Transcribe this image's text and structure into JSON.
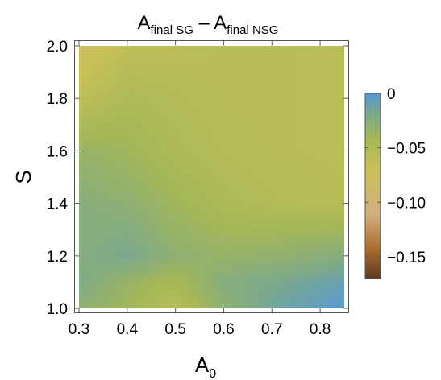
{
  "chart_data": {
    "type": "heatmap",
    "title": "A",
    "title_sub_left": "final SG",
    "title_sep": " – ",
    "title_right": "A",
    "title_sub_right": "final NSG",
    "xlabel": "A",
    "xlabel_sub": "0",
    "ylabel": "S",
    "xlim": [
      0.3,
      0.85
    ],
    "ylim": [
      1.0,
      2.0
    ],
    "x_ticks": [
      "0.3",
      "0.4",
      "0.5",
      "0.6",
      "0.7",
      "0.8"
    ],
    "y_ticks": [
      "1.0",
      "1.2",
      "1.4",
      "1.6",
      "1.8",
      "2.0"
    ],
    "colorbar": {
      "range": [
        -0.17,
        0
      ],
      "ticks": [
        "0",
        "-0.05",
        "-0.10",
        "-0.15"
      ],
      "tick_values": [
        0,
        -0.05,
        -0.1,
        -0.15
      ],
      "colors": [
        "#5b3a25",
        "#a8692c",
        "#d3b07e",
        "#c9c157",
        "#a6b857",
        "#7eaa88",
        "#5599d8"
      ],
      "color_stops": [
        0,
        0.15,
        0.35,
        0.6,
        0.75,
        0.88,
        1
      ]
    },
    "approximate_grid": {
      "x": [
        0.3,
        0.4,
        0.5,
        0.6,
        0.7,
        0.85
      ],
      "y": [
        1.0,
        1.1,
        1.2,
        1.4,
        1.6,
        1.8,
        2.0
      ],
      "z": [
        [
          -0.03,
          -0.04,
          -0.055,
          -0.03,
          -0.015,
          -0.002
        ],
        [
          -0.02,
          -0.035,
          -0.045,
          -0.025,
          -0.02,
          -0.01
        ],
        [
          -0.025,
          -0.018,
          -0.03,
          -0.035,
          -0.032,
          -0.025
        ],
        [
          -0.025,
          -0.03,
          -0.04,
          -0.048,
          -0.052,
          -0.055
        ],
        [
          -0.035,
          -0.04,
          -0.048,
          -0.053,
          -0.055,
          -0.056
        ],
        [
          -0.06,
          -0.048,
          -0.052,
          -0.055,
          -0.055,
          -0.056
        ],
        [
          -0.08,
          -0.06,
          -0.058,
          -0.055,
          -0.055,
          -0.056
        ]
      ]
    }
  }
}
